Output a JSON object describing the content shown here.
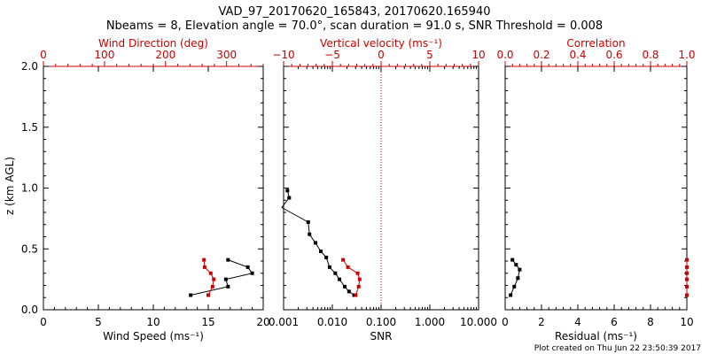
{
  "figure": {
    "title_line1": "VAD_97_20170620_165843, 20170620.165940",
    "title_line2": "Nbeams = 8, Elevation angle = 70.0°, scan duration = 91.0 s, SNR Threshold = 0.008",
    "footer": "Plot created on Thu Jun 22 23:50:39 2017"
  },
  "colors": {
    "primary": "#000000",
    "secondary": "#cc0000"
  },
  "chart_data": [
    {
      "type": "line",
      "ylabel": "z (km AGL)",
      "ylim": [
        0,
        2
      ],
      "yticks": [
        "0.0",
        "0.5",
        "1.0",
        "1.5",
        "2.0"
      ],
      "bottom_axis": {
        "label": "Wind Speed (ms⁻¹)",
        "range": [
          0,
          20
        ],
        "scale": "linear",
        "ticks": [
          "0",
          "5",
          "10",
          "15",
          "20"
        ]
      },
      "top_axis": {
        "label": "Wind Direction (deg)",
        "range": [
          0,
          360
        ],
        "scale": "linear",
        "ticks": [
          "0",
          "100",
          "200",
          "300"
        ]
      },
      "series": [
        {
          "axis": "bottom",
          "color": "#000000",
          "x": [
            16.8,
            18.6,
            19.0,
            16.6,
            16.8,
            13.4
          ],
          "y": [
            0.41,
            0.35,
            0.3,
            0.25,
            0.19,
            0.12
          ]
        },
        {
          "axis": "top",
          "color": "#cc0000",
          "x": [
            263,
            264,
            274,
            279,
            277,
            270
          ],
          "y": [
            0.41,
            0.35,
            0.3,
            0.25,
            0.19,
            0.12
          ]
        }
      ]
    },
    {
      "type": "line",
      "ylim": [
        0,
        2
      ],
      "bottom_axis": {
        "label": "SNR",
        "range": [
          0.001,
          10
        ],
        "scale": "log",
        "ticks": [
          "0.001",
          "0.010",
          "0.100",
          "1.000",
          "10.000"
        ]
      },
      "top_axis": {
        "label": "Vertical velocity (ms⁻¹)",
        "range": [
          -10,
          10
        ],
        "scale": "linear",
        "ticks": [
          "−10",
          "−5",
          "0",
          "5",
          "10"
        ]
      },
      "reference_line": {
        "axis": "top",
        "value": 0,
        "style": "dotted"
      },
      "series": [
        {
          "axis": "bottom",
          "color": "#000000",
          "x": [
            0.0012,
            0.0013,
            0.0032,
            0.0034,
            0.0045,
            0.0058,
            0.0075,
            0.0088,
            0.0115,
            0.014,
            0.018,
            0.022,
            0.028
          ],
          "y": [
            0.98,
            0.92,
            0.72,
            0.62,
            0.55,
            0.48,
            0.43,
            0.35,
            0.3,
            0.25,
            0.19,
            0.15,
            0.12
          ]
        },
        {
          "axis": "top",
          "color": "#cc0000",
          "x": [
            -3.9,
            -3.4,
            -2.4,
            -2.2,
            -2.3,
            -2.6
          ],
          "y": [
            0.41,
            0.35,
            0.3,
            0.25,
            0.19,
            0.12
          ]
        }
      ]
    },
    {
      "type": "line",
      "ylim": [
        0,
        2
      ],
      "bottom_axis": {
        "label": "Residual (ms⁻¹)",
        "range": [
          0,
          10
        ],
        "scale": "linear",
        "ticks": [
          "0",
          "2",
          "4",
          "6",
          "8",
          "10"
        ]
      },
      "top_axis": {
        "label": "Correlation",
        "range": [
          0,
          1
        ],
        "scale": "linear",
        "ticks": [
          "0.0",
          "0.2",
          "0.4",
          "0.6",
          "0.8",
          "1.0"
        ]
      },
      "series": [
        {
          "axis": "bottom",
          "color": "#000000",
          "x": [
            0.4,
            0.6,
            0.8,
            0.7,
            0.5,
            0.3
          ],
          "y": [
            0.41,
            0.37,
            0.33,
            0.26,
            0.19,
            0.12
          ]
        },
        {
          "axis": "top",
          "color": "#cc0000",
          "x": [
            1.0,
            1.0,
            1.0,
            1.0,
            1.0,
            1.0
          ],
          "y": [
            0.41,
            0.35,
            0.3,
            0.25,
            0.19,
            0.12
          ]
        }
      ]
    }
  ]
}
